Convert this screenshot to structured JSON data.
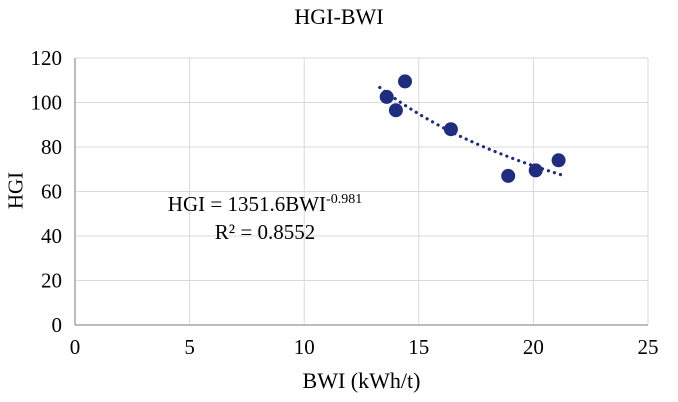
{
  "title": "HGI-BWI",
  "axes": {
    "x_label": "BWI (kWh/t)",
    "y_label": "HGI"
  },
  "annotation": {
    "equation_base": "HGI = 1351.6BWI",
    "equation_exponent": "-0.981",
    "r_squared": "R² = 0.8552"
  },
  "chart_data": {
    "type": "scatter",
    "title": "HGI-BWI",
    "xlabel": "BWI (kWh/t)",
    "ylabel": "HGI",
    "xlim": [
      0,
      25
    ],
    "ylim": [
      0,
      120
    ],
    "xticks": [
      0,
      5,
      10,
      15,
      20,
      25
    ],
    "yticks": [
      0,
      20,
      40,
      60,
      80,
      100,
      120
    ],
    "grid": true,
    "legend": "none",
    "points": [
      [
        13.6,
        102.5
      ],
      [
        14.0,
        96.5
      ],
      [
        14.4,
        109.5
      ],
      [
        16.4,
        88
      ],
      [
        18.9,
        67
      ],
      [
        20.1,
        69.5
      ],
      [
        21.1,
        74
      ]
    ],
    "trendline": {
      "type": "power",
      "a": 1351.6,
      "b": -0.981,
      "x_start": 13.3,
      "x_end": 21.4,
      "equation": "HGI = 1351.6*BWI^-0.981",
      "r2": 0.8552,
      "style": "dotted"
    },
    "colors": {
      "point": "#1f2d7e",
      "trend": "#1f2d7e",
      "grid": "#d9d9d9",
      "axis": "#a6a6a6",
      "text": "#000000"
    }
  }
}
